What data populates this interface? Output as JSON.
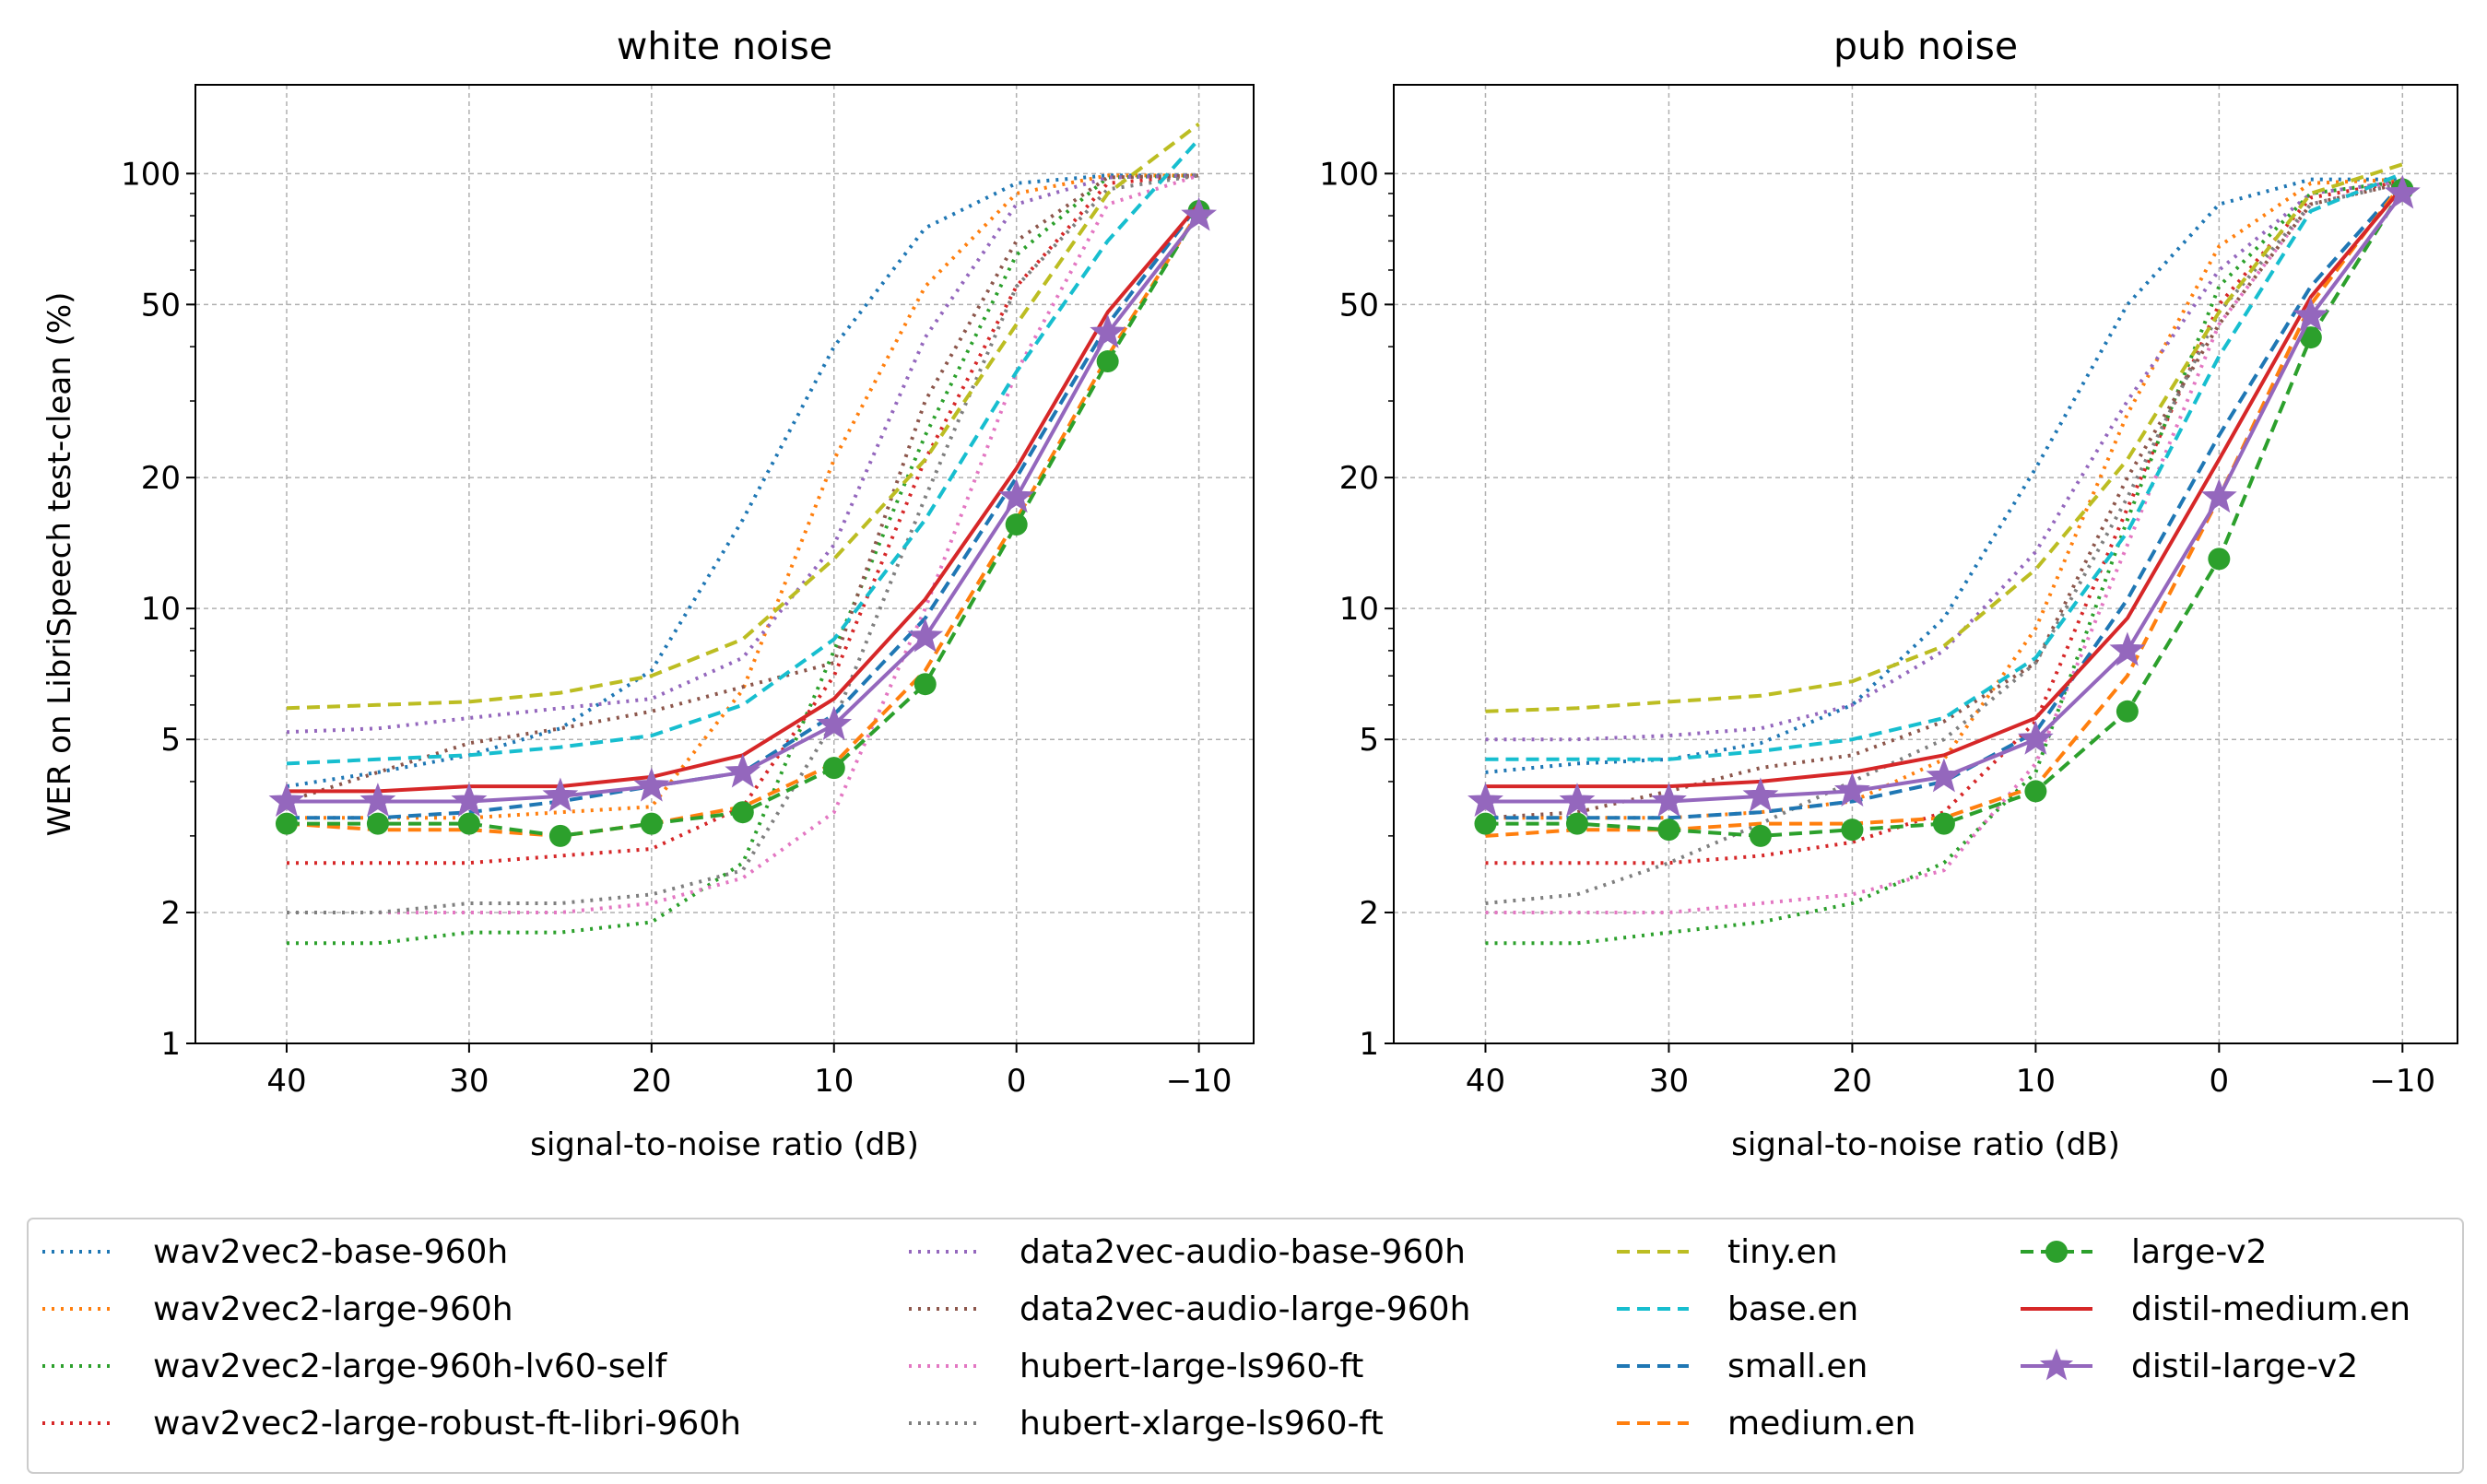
{
  "chart_data": {
    "type": "line",
    "ylabel": "WER on LibriSpeech test-clean (%)",
    "xlabel": "signal-to-noise ratio (dB)",
    "yscale": "log",
    "ylim": [
      1,
      160
    ],
    "xlim": [
      45,
      -13
    ],
    "x": [
      40,
      35,
      30,
      25,
      20,
      15,
      10,
      5,
      0,
      -5,
      -10
    ],
    "x_ticks": [
      40,
      30,
      20,
      10,
      0,
      -10
    ],
    "x_tick_labels": [
      "40",
      "30",
      "20",
      "10",
      "0",
      "−10"
    ],
    "y_ticks": [
      1,
      2,
      5,
      10,
      20,
      50,
      100
    ],
    "y_tick_labels": [
      "1",
      "2",
      "5",
      "10",
      "20",
      "50",
      "100"
    ],
    "legend_location": "bottom, 4 columns",
    "models": [
      {
        "name": "wav2vec2-base-960h",
        "color": "#1f77b4",
        "style": "dotted",
        "marker": "none"
      },
      {
        "name": "wav2vec2-large-960h",
        "color": "#ff7f0e",
        "style": "dotted",
        "marker": "none"
      },
      {
        "name": "wav2vec2-large-960h-lv60-self",
        "color": "#2ca02c",
        "style": "dotted",
        "marker": "none"
      },
      {
        "name": "wav2vec2-large-robust-ft-libri-960h",
        "color": "#d62728",
        "style": "dotted",
        "marker": "none"
      },
      {
        "name": "data2vec-audio-base-960h",
        "color": "#9467bd",
        "style": "dotted",
        "marker": "none"
      },
      {
        "name": "data2vec-audio-large-960h",
        "color": "#8c564b",
        "style": "dotted",
        "marker": "none"
      },
      {
        "name": "hubert-large-ls960-ft",
        "color": "#e377c2",
        "style": "dotted",
        "marker": "none"
      },
      {
        "name": "hubert-xlarge-ls960-ft",
        "color": "#7f7f7f",
        "style": "dotted",
        "marker": "none"
      },
      {
        "name": "tiny.en",
        "color": "#bcbd22",
        "style": "dashed",
        "marker": "none"
      },
      {
        "name": "base.en",
        "color": "#17becf",
        "style": "dashed",
        "marker": "none"
      },
      {
        "name": "small.en",
        "color": "#1f77b4",
        "style": "dashed",
        "marker": "none"
      },
      {
        "name": "medium.en",
        "color": "#ff7f0e",
        "style": "dashed",
        "marker": "none"
      },
      {
        "name": "large-v2",
        "color": "#2ca02c",
        "style": "dashed",
        "marker": "circle"
      },
      {
        "name": "distil-medium.en",
        "color": "#d62728",
        "style": "solid",
        "marker": "none"
      },
      {
        "name": "distil-large-v2",
        "color": "#9467bd",
        "style": "solid",
        "marker": "star"
      }
    ],
    "panels": [
      {
        "title": "white noise",
        "series": [
          {
            "name": "wav2vec2-base-960h",
            "values": [
              3.9,
              4.2,
              4.6,
              5.3,
              7.2,
              16,
              40,
              75,
              95,
              99,
              99
            ]
          },
          {
            "name": "wav2vec2-large-960h",
            "values": [
              3.3,
              3.3,
              3.3,
              3.4,
              3.5,
              6.5,
              22,
              55,
              90,
              99,
              99
            ]
          },
          {
            "name": "wav2vec2-large-960h-lv60-self",
            "values": [
              1.7,
              1.7,
              1.8,
              1.8,
              1.9,
              2.6,
              8,
              25,
              65,
              98,
              99
            ]
          },
          {
            "name": "wav2vec2-large-robust-ft-libri-960h",
            "values": [
              2.6,
              2.6,
              2.6,
              2.7,
              2.8,
              3.5,
              7,
              22,
              55,
              95,
              99
            ]
          },
          {
            "name": "data2vec-audio-base-960h",
            "values": [
              5.2,
              5.3,
              5.6,
              5.9,
              6.2,
              7.7,
              14,
              42,
              85,
              98,
              99
            ]
          },
          {
            "name": "data2vec-audio-large-960h",
            "values": [
              3.6,
              4.2,
              4.9,
              5.3,
              5.8,
              6.6,
              7.5,
              30,
              70,
              98,
              99
            ]
          },
          {
            "name": "hubert-large-ls960-ft",
            "values": [
              2.0,
              2.0,
              2.0,
              2.0,
              2.1,
              2.4,
              3.4,
              10,
              35,
              85,
              99
            ]
          },
          {
            "name": "hubert-xlarge-ls960-ft",
            "values": [
              2.0,
              2.0,
              2.1,
              2.1,
              2.2,
              2.5,
              5.5,
              18,
              55,
              92,
              99
            ]
          },
          {
            "name": "tiny.en",
            "values": [
              5.9,
              6.0,
              6.1,
              6.4,
              7.0,
              8.5,
              13,
              22,
              45,
              90,
              130
            ]
          },
          {
            "name": "base.en",
            "values": [
              4.4,
              4.5,
              4.6,
              4.8,
              5.1,
              6.0,
              8.5,
              16,
              35,
              70,
              120
            ]
          },
          {
            "name": "small.en",
            "values": [
              3.3,
              3.3,
              3.4,
              3.6,
              3.9,
              4.2,
              5.7,
              9.5,
              20,
              45,
              85
            ]
          },
          {
            "name": "medium.en",
            "values": [
              3.2,
              3.1,
              3.1,
              3.0,
              3.2,
              3.5,
              4.4,
              7.2,
              16,
              38,
              82
            ]
          },
          {
            "name": "large-v2",
            "values": [
              3.2,
              3.2,
              3.2,
              3.0,
              3.2,
              3.4,
              4.3,
              6.7,
              15.6,
              37,
              82
            ]
          },
          {
            "name": "distil-medium.en",
            "values": [
              3.8,
              3.8,
              3.9,
              3.9,
              4.1,
              4.6,
              6.2,
              10.5,
              21,
              48,
              85
            ]
          },
          {
            "name": "distil-large-v2",
            "values": [
              3.6,
              3.6,
              3.6,
              3.7,
              3.9,
              4.2,
              5.4,
              8.6,
              18,
              43,
              80
            ]
          }
        ]
      },
      {
        "title": "pub noise",
        "series": [
          {
            "name": "wav2vec2-base-960h",
            "values": [
              4.2,
              4.4,
              4.5,
              4.9,
              6,
              9.5,
              21,
              50,
              85,
              97,
              97
            ]
          },
          {
            "name": "wav2vec2-large-960h",
            "values": [
              3.3,
              3.3,
              3.3,
              3.4,
              3.6,
              4.5,
              9,
              28,
              68,
              95,
              97
            ]
          },
          {
            "name": "wav2vec2-large-960h-lv60-self",
            "values": [
              1.7,
              1.7,
              1.8,
              1.9,
              2.1,
              2.6,
              4.2,
              16,
              55,
              90,
              96
            ]
          },
          {
            "name": "wav2vec2-large-robust-ft-libri-960h",
            "values": [
              2.6,
              2.6,
              2.6,
              2.7,
              2.9,
              3.4,
              5.5,
              17,
              50,
              88,
              96
            ]
          },
          {
            "name": "data2vec-audio-base-960h",
            "values": [
              5.0,
              5.0,
              5.1,
              5.3,
              6,
              8,
              13.5,
              30,
              60,
              90,
              96
            ]
          },
          {
            "name": "data2vec-audio-large-960h",
            "values": [
              3.3,
              3.4,
              3.8,
              4.3,
              4.6,
              5.5,
              7.5,
              20,
              45,
              85,
              95
            ]
          },
          {
            "name": "hubert-large-ls960-ft",
            "values": [
              2.0,
              2.0,
              2.0,
              2.1,
              2.2,
              2.5,
              4.4,
              14,
              45,
              85,
              96
            ]
          },
          {
            "name": "hubert-xlarge-ls960-ft",
            "values": [
              2.1,
              2.2,
              2.6,
              3.2,
              4.0,
              5.0,
              7.5,
              18,
              48,
              85,
              95
            ]
          },
          {
            "name": "tiny.en",
            "values": [
              5.8,
              5.9,
              6.1,
              6.3,
              6.8,
              8.2,
              12.3,
              22,
              48,
              90,
              105
            ]
          },
          {
            "name": "base.en",
            "values": [
              4.5,
              4.5,
              4.5,
              4.7,
              5.0,
              5.6,
              7.7,
              15,
              38,
              82,
              100
            ]
          },
          {
            "name": "small.en",
            "values": [
              3.3,
              3.3,
              3.3,
              3.4,
              3.6,
              4.0,
              5.2,
              10.5,
              25,
              55,
              95
            ]
          },
          {
            "name": "medium.en",
            "values": [
              3.0,
              3.1,
              3.1,
              3.2,
              3.2,
              3.3,
              3.9,
              7.0,
              18,
              50,
              95
            ]
          },
          {
            "name": "large-v2",
            "values": [
              3.2,
              3.2,
              3.1,
              3.0,
              3.1,
              3.2,
              3.8,
              5.8,
              13,
              42,
              92
            ]
          },
          {
            "name": "distil-medium.en",
            "values": [
              3.9,
              3.9,
              3.9,
              4.0,
              4.2,
              4.6,
              5.6,
              9.5,
              22,
              52,
              93
            ]
          },
          {
            "name": "distil-large-v2",
            "values": [
              3.6,
              3.6,
              3.6,
              3.7,
              3.8,
              4.1,
              5.0,
              8.0,
              18,
              47,
              90
            ]
          }
        ]
      }
    ]
  }
}
